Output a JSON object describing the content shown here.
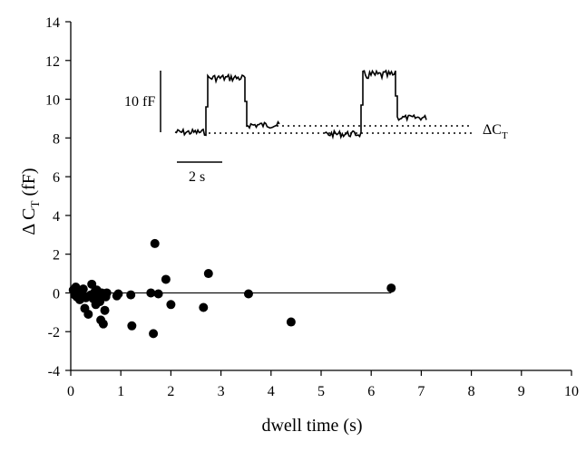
{
  "chart_data": {
    "type": "scatter",
    "xlabel": "dwell time (s)",
    "ylabel": {
      "main": "Δ C",
      "sub": "T",
      "unit": " (fF)"
    },
    "xlim": [
      0,
      10
    ],
    "ylim": [
      -4,
      14
    ],
    "xticks": [
      0,
      1,
      2,
      3,
      4,
      5,
      6,
      7,
      8,
      9,
      10
    ],
    "yticks": [
      -4,
      -2,
      0,
      2,
      4,
      6,
      8,
      10,
      12,
      14
    ],
    "grid": false,
    "points": [
      {
        "x": 0.05,
        "y": 0.15
      },
      {
        "x": 0.08,
        "y": -0.1
      },
      {
        "x": 0.1,
        "y": 0.3
      },
      {
        "x": 0.12,
        "y": -0.2
      },
      {
        "x": 0.15,
        "y": 0.05
      },
      {
        "x": 0.18,
        "y": -0.35
      },
      {
        "x": 0.2,
        "y": 0.1
      },
      {
        "x": 0.22,
        "y": -0.05
      },
      {
        "x": 0.25,
        "y": 0.2
      },
      {
        "x": 0.28,
        "y": -0.8
      },
      {
        "x": 0.3,
        "y": -0.25
      },
      {
        "x": 0.35,
        "y": -1.1
      },
      {
        "x": 0.4,
        "y": -0.1
      },
      {
        "x": 0.42,
        "y": 0.45
      },
      {
        "x": 0.45,
        "y": -0.3
      },
      {
        "x": 0.48,
        "y": 0.05
      },
      {
        "x": 0.5,
        "y": -0.6
      },
      {
        "x": 0.52,
        "y": 0.15
      },
      {
        "x": 0.55,
        "y": -0.15
      },
      {
        "x": 0.58,
        "y": -0.45
      },
      {
        "x": 0.6,
        "y": -1.4
      },
      {
        "x": 0.62,
        "y": 0.0
      },
      {
        "x": 0.65,
        "y": -1.6
      },
      {
        "x": 0.68,
        "y": -0.9
      },
      {
        "x": 0.7,
        "y": -0.2
      },
      {
        "x": 0.72,
        "y": 0.0
      },
      {
        "x": 0.92,
        "y": -0.15
      },
      {
        "x": 0.95,
        "y": -0.05
      },
      {
        "x": 1.2,
        "y": -0.1
      },
      {
        "x": 1.22,
        "y": -1.7
      },
      {
        "x": 1.6,
        "y": 0.0
      },
      {
        "x": 1.65,
        "y": -2.1
      },
      {
        "x": 1.68,
        "y": 2.55
      },
      {
        "x": 1.75,
        "y": -0.05
      },
      {
        "x": 1.9,
        "y": 0.7
      },
      {
        "x": 2.0,
        "y": -0.6
      },
      {
        "x": 2.65,
        "y": -0.75
      },
      {
        "x": 2.75,
        "y": 1.0
      },
      {
        "x": 3.55,
        "y": -0.05
      },
      {
        "x": 4.4,
        "y": -1.5
      },
      {
        "x": 6.4,
        "y": 0.25
      }
    ],
    "fit_line": {
      "x": [
        0,
        6.4
      ],
      "y": [
        0.0,
        0.0
      ]
    },
    "inset": {
      "scale_y_label": "10 fF",
      "scale_x_label": "2 s",
      "delta_label": {
        "main": "ΔC",
        "sub": "T"
      }
    }
  }
}
